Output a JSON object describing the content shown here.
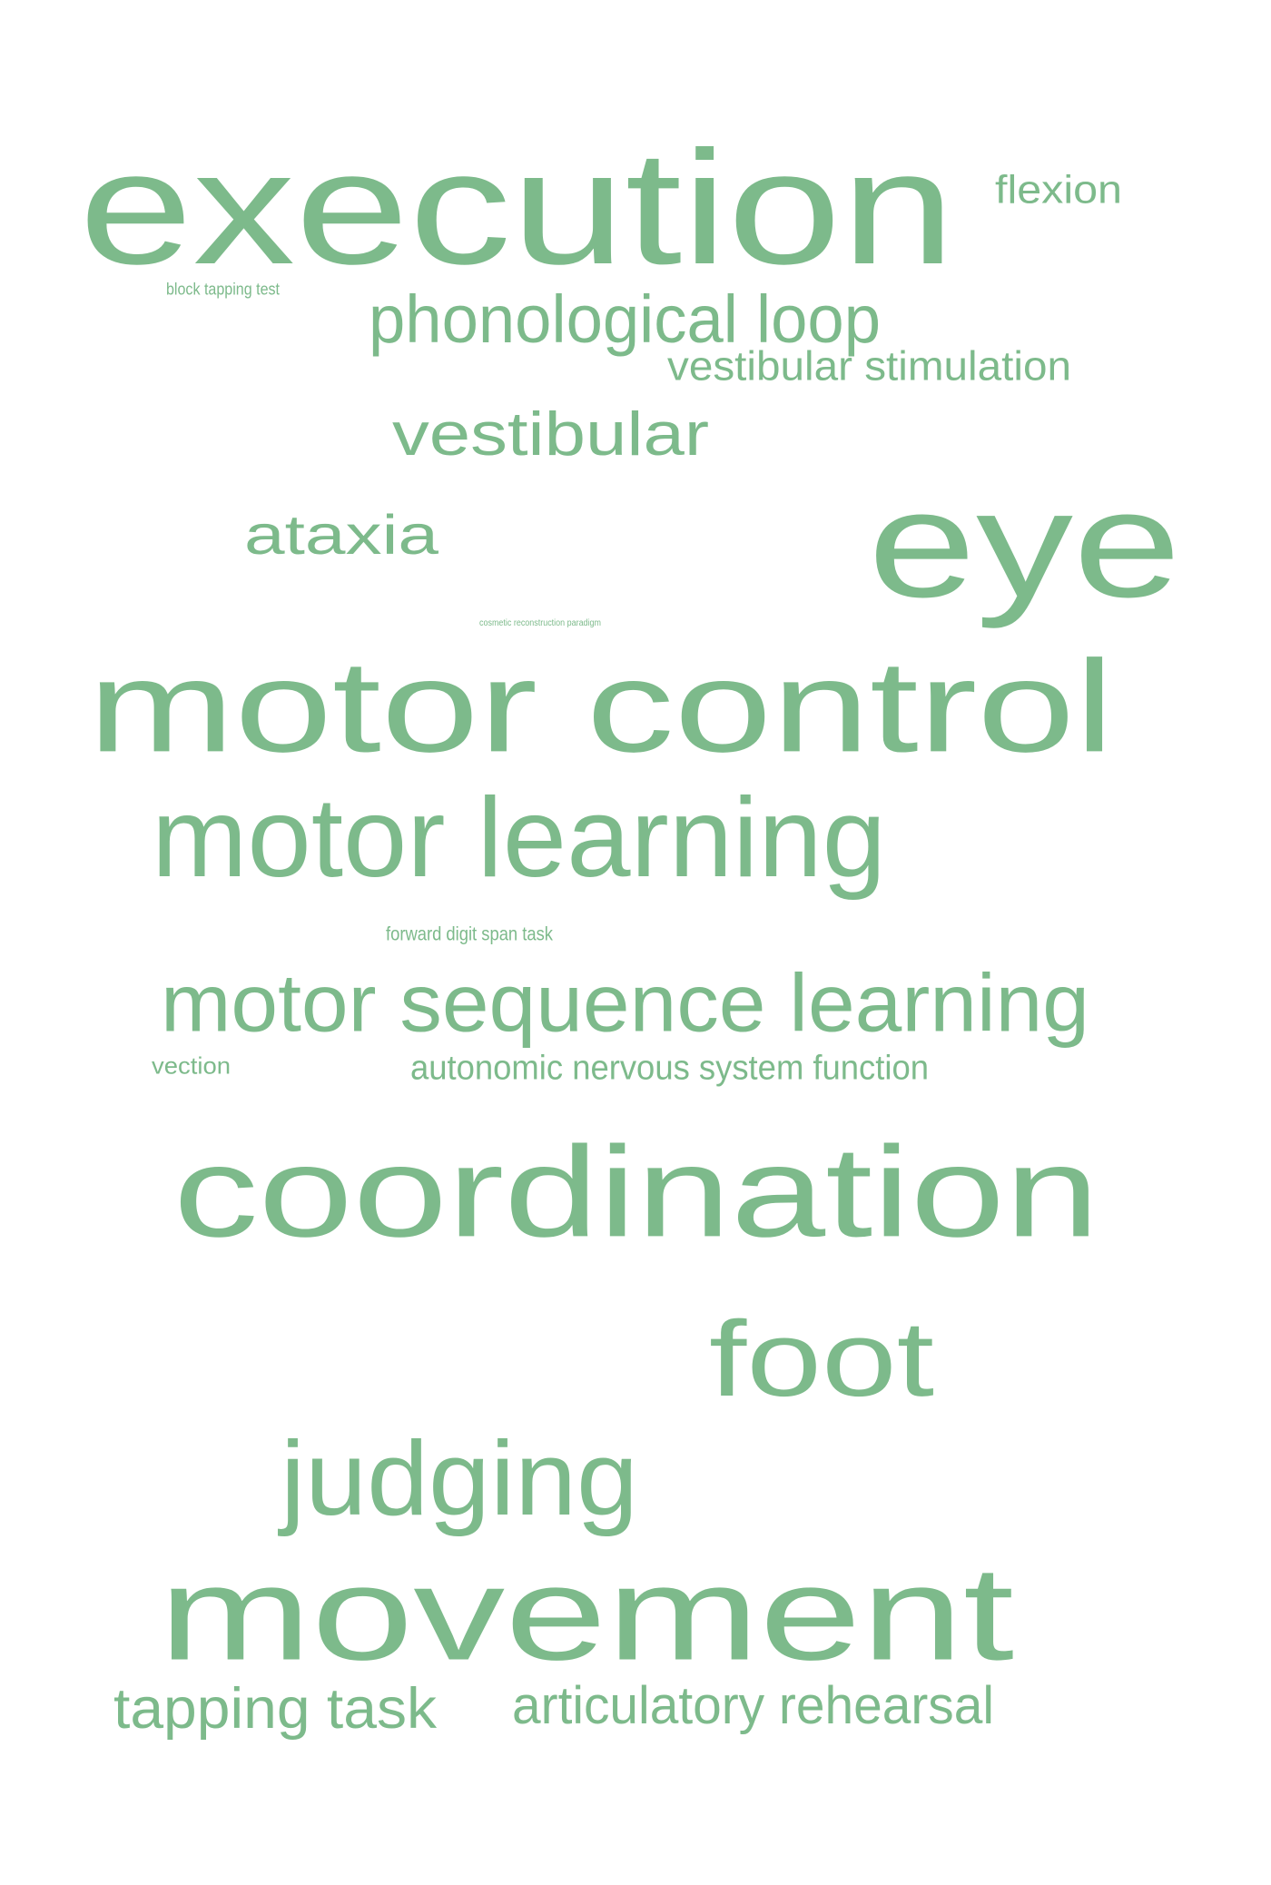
{
  "palette": {
    "word_color": "#7dba8b",
    "background": "#ffffff"
  },
  "words": [
    {
      "key": "execution",
      "text": "execution"
    },
    {
      "key": "flexion",
      "text": "flexion"
    },
    {
      "key": "block-tapping-test",
      "text": "block tapping test"
    },
    {
      "key": "phonological-loop",
      "text": "phonological loop"
    },
    {
      "key": "vestibular-stimulation",
      "text": "vestibular stimulation"
    },
    {
      "key": "vestibular",
      "text": "vestibular"
    },
    {
      "key": "eye",
      "text": "eye"
    },
    {
      "key": "ataxia",
      "text": "ataxia"
    },
    {
      "key": "cosmetic-paradigm",
      "text": "cosmetic reconstruction paradigm"
    },
    {
      "key": "motor-control",
      "text": "motor control"
    },
    {
      "key": "motor-learning",
      "text": "motor learning"
    },
    {
      "key": "forward-digit-span-task",
      "text": "forward digit span task"
    },
    {
      "key": "motor-sequence-learning",
      "text": "motor sequence learning"
    },
    {
      "key": "vection",
      "text": "vection"
    },
    {
      "key": "autonomic-nervous-system-function",
      "text": "autonomic nervous system function"
    },
    {
      "key": "coordination",
      "text": "coordination"
    },
    {
      "key": "foot",
      "text": "foot"
    },
    {
      "key": "judging",
      "text": "judging"
    },
    {
      "key": "movement",
      "text": "movement"
    },
    {
      "key": "tapping-task",
      "text": "tapping task"
    },
    {
      "key": "articulatory-rehearsal",
      "text": "articulatory rehearsal"
    }
  ]
}
